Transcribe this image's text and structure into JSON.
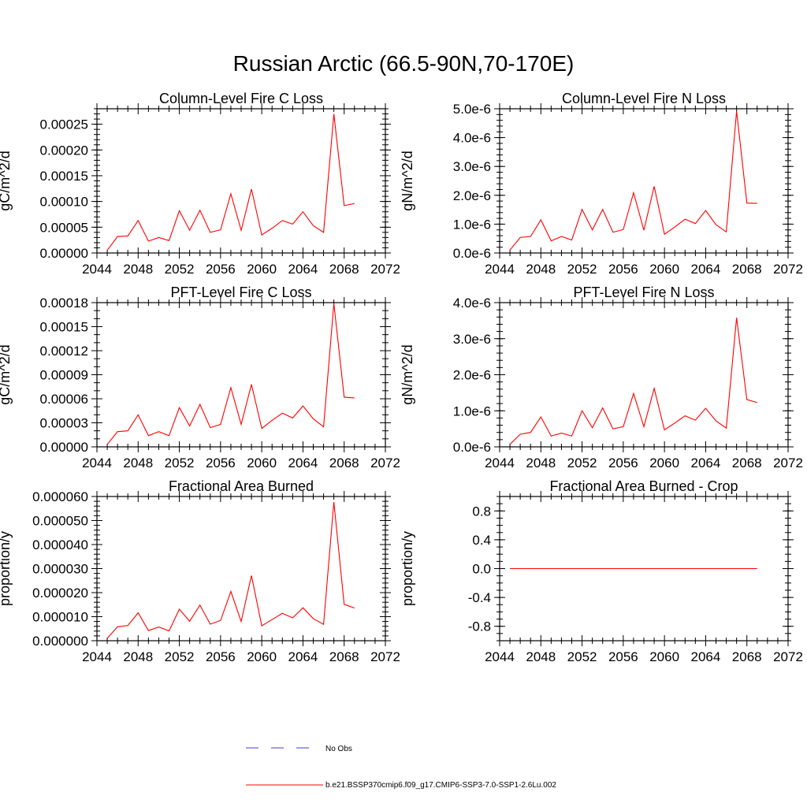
{
  "page": {
    "title": "Russian Arctic (66.5-90N,70-170E)"
  },
  "chart_data": [
    {
      "type": "line",
      "title": "Column-Level Fire C Loss",
      "ylabel": "gC/m^2/d",
      "xlim": [
        2044,
        2072
      ],
      "ylim": [
        0,
        0.00028
      ],
      "xticks": [
        "2044",
        "2048",
        "2052",
        "2056",
        "2060",
        "2064",
        "2068",
        "2072"
      ],
      "yticks": [
        {
          "v": 0.0,
          "label": "0.00000"
        },
        {
          "v": 5e-05,
          "label": "0.00005"
        },
        {
          "v": 0.0001,
          "label": "0.00010"
        },
        {
          "v": 0.00015,
          "label": "0.00015"
        },
        {
          "v": 0.0002,
          "label": "0.00020"
        },
        {
          "v": 0.00025,
          "label": "0.00025"
        }
      ],
      "ymin_minor": 1e-05,
      "x": [
        2045,
        2046,
        2047,
        2048,
        2049,
        2050,
        2051,
        2052,
        2053,
        2054,
        2055,
        2056,
        2057,
        2058,
        2059,
        2060,
        2061,
        2062,
        2063,
        2064,
        2065,
        2066,
        2067,
        2068,
        2069
      ],
      "values": [
        5e-06,
        3.2e-05,
        3.3e-05,
        6.3e-05,
        2.3e-05,
        3e-05,
        2.4e-05,
        8.2e-05,
        4.4e-05,
        8.3e-05,
        4e-05,
        4.5e-05,
        0.000115,
        4.4e-05,
        0.000124,
        3.5e-05,
        4.8e-05,
        6.3e-05,
        5.6e-05,
        8e-05,
        5.3e-05,
        4e-05,
        0.00027,
        9.2e-05,
        9.6e-05
      ],
      "color": "#ff0000"
    },
    {
      "type": "line",
      "title": "Column-Level Fire N Loss",
      "ylabel": "gN/m^2/d",
      "xlim": [
        2044,
        2072
      ],
      "ylim": [
        0,
        5e-06
      ],
      "xticks": [
        "2044",
        "2048",
        "2052",
        "2056",
        "2060",
        "2064",
        "2068",
        "2072"
      ],
      "yticks": [
        {
          "v": 0.0,
          "label": "0.0e-6"
        },
        {
          "v": 1e-06,
          "label": "1.0e-6"
        },
        {
          "v": 2e-06,
          "label": "2.0e-6"
        },
        {
          "v": 3e-06,
          "label": "3.0e-6"
        },
        {
          "v": 4e-06,
          "label": "4.0e-6"
        },
        {
          "v": 5e-06,
          "label": "5.0e-6"
        }
      ],
      "ymin_minor": 2e-07,
      "x": [
        2045,
        2046,
        2047,
        2048,
        2049,
        2050,
        2051,
        2052,
        2053,
        2054,
        2055,
        2056,
        2057,
        2058,
        2059,
        2060,
        2061,
        2062,
        2063,
        2064,
        2065,
        2066,
        2067,
        2068,
        2069
      ],
      "values": [
        1e-07,
        5.4e-07,
        5.7e-07,
        1.15e-06,
        4.2e-07,
        5.7e-07,
        4.5e-07,
        1.51e-06,
        8e-07,
        1.51e-06,
        7.2e-07,
        8.1e-07,
        2.09e-06,
        7.9e-07,
        2.31e-06,
        6.5e-07,
        9e-07,
        1.17e-06,
        1.02e-06,
        1.47e-06,
        9.8e-07,
        7.3e-07,
        4.92e-06,
        1.73e-06,
        1.72e-06
      ],
      "color": "#ff0000"
    },
    {
      "type": "line",
      "title": "PFT-Level Fire C Loss",
      "ylabel": "gC/m^2/d",
      "xlim": [
        2044,
        2072
      ],
      "ylim": [
        0,
        0.00018
      ],
      "xticks": [
        "2044",
        "2048",
        "2052",
        "2056",
        "2060",
        "2064",
        "2068",
        "2072"
      ],
      "yticks": [
        {
          "v": 0.0,
          "label": "0.00000"
        },
        {
          "v": 3e-05,
          "label": "0.00003"
        },
        {
          "v": 6e-05,
          "label": "0.00006"
        },
        {
          "v": 9e-05,
          "label": "0.00009"
        },
        {
          "v": 0.00012,
          "label": "0.00012"
        },
        {
          "v": 0.00015,
          "label": "0.00015"
        },
        {
          "v": 0.00018,
          "label": "0.00018"
        }
      ],
      "ymin_minor": 1e-05,
      "x": [
        2045,
        2046,
        2047,
        2048,
        2049,
        2050,
        2051,
        2052,
        2053,
        2054,
        2055,
        2056,
        2057,
        2058,
        2059,
        2060,
        2061,
        2062,
        2063,
        2064,
        2065,
        2066,
        2067,
        2068,
        2069
      ],
      "values": [
        3e-06,
        1.9e-05,
        2e-05,
        4e-05,
        1.4e-05,
        1.9e-05,
        1.4e-05,
        4.9e-05,
        2.6e-05,
        5.3e-05,
        2.4e-05,
        2.8e-05,
        7.4e-05,
        2.8e-05,
        7.8e-05,
        2.3e-05,
        3.3e-05,
        4.2e-05,
        3.6e-05,
        5.1e-05,
        3.5e-05,
        2.5e-05,
        0.000179,
        6.2e-05,
        6.1e-05
      ],
      "color": "#ff0000"
    },
    {
      "type": "line",
      "title": "PFT-Level Fire N Loss",
      "ylabel": "gN/m^2/d",
      "xlim": [
        2044,
        2072
      ],
      "ylim": [
        0,
        4e-06
      ],
      "xticks": [
        "2044",
        "2048",
        "2052",
        "2056",
        "2060",
        "2064",
        "2068",
        "2072"
      ],
      "yticks": [
        {
          "v": 0.0,
          "label": "0.0e-6"
        },
        {
          "v": 1e-06,
          "label": "1.0e-6"
        },
        {
          "v": 2e-06,
          "label": "2.0e-6"
        },
        {
          "v": 3e-06,
          "label": "3.0e-6"
        },
        {
          "v": 4e-06,
          "label": "4.0e-6"
        }
      ],
      "ymin_minor": 2e-07,
      "x": [
        2045,
        2046,
        2047,
        2048,
        2049,
        2050,
        2051,
        2052,
        2053,
        2054,
        2055,
        2056,
        2057,
        2058,
        2059,
        2060,
        2061,
        2062,
        2063,
        2064,
        2065,
        2066,
        2067,
        2068,
        2069
      ],
      "values": [
        7e-08,
        3.5e-07,
        4e-07,
        8.3e-07,
        3e-07,
        3.8e-07,
        3e-07,
        1e-06,
        5.3e-07,
        1.08e-06,
        5e-07,
        5.6e-07,
        1.48e-06,
        5.6e-07,
        1.62e-06,
        4.7e-07,
        6.6e-07,
        8.6e-07,
        7.4e-07,
        1.07e-06,
        7.2e-07,
        5.2e-07,
        3.58e-06,
        1.31e-06,
        1.23e-06
      ],
      "color": "#ff0000"
    },
    {
      "type": "line",
      "title": "Fractional Area Burned",
      "ylabel": "proportion/y",
      "xlim": [
        2044,
        2072
      ],
      "ylim": [
        0,
        6e-05
      ],
      "xticks": [
        "2044",
        "2048",
        "2052",
        "2056",
        "2060",
        "2064",
        "2068",
        "2072"
      ],
      "yticks": [
        {
          "v": 0.0,
          "label": "0.000000"
        },
        {
          "v": 1e-05,
          "label": "0.000010"
        },
        {
          "v": 2e-05,
          "label": "0.000020"
        },
        {
          "v": 3e-05,
          "label": "0.000030"
        },
        {
          "v": 4e-05,
          "label": "0.000040"
        },
        {
          "v": 5e-05,
          "label": "0.000050"
        },
        {
          "v": 6e-05,
          "label": "0.000060"
        }
      ],
      "ymin_minor": 2e-06,
      "x": [
        2045,
        2046,
        2047,
        2048,
        2049,
        2050,
        2051,
        2052,
        2053,
        2054,
        2055,
        2056,
        2057,
        2058,
        2059,
        2060,
        2061,
        2062,
        2063,
        2064,
        2065,
        2066,
        2067,
        2068,
        2069
      ],
      "values": [
        1e-06,
        5.8e-06,
        6.3e-06,
        1.16e-05,
        4.2e-06,
        5.7e-06,
        4.1e-06,
        1.31e-05,
        8.1e-06,
        1.48e-05,
        6.9e-06,
        8.4e-06,
        2.05e-05,
        8e-06,
        2.71e-05,
        6.2e-06,
        8.8e-06,
        1.14e-05,
        9.5e-06,
        1.37e-05,
        9.2e-06,
        6.8e-06,
        5.77e-05,
        1.51e-05,
        1.36e-05
      ],
      "color": "#ff0000"
    },
    {
      "type": "line",
      "title": "Fractional Area Burned - Crop",
      "ylabel": "proportion/y",
      "xlim": [
        2044,
        2072
      ],
      "ylim": [
        -1.0,
        1.0
      ],
      "xticks": [
        "2044",
        "2048",
        "2052",
        "2056",
        "2060",
        "2064",
        "2068",
        "2072"
      ],
      "yticks": [
        {
          "v": -0.8,
          "label": "-0.8"
        },
        {
          "v": -0.4,
          "label": "-0.4"
        },
        {
          "v": 0.0,
          "label": "0.0"
        },
        {
          "v": 0.4,
          "label": "0.4"
        },
        {
          "v": 0.8,
          "label": "0.8"
        }
      ],
      "ymin_minor": 0.1,
      "x": [
        2045,
        2046,
        2047,
        2048,
        2049,
        2050,
        2051,
        2052,
        2053,
        2054,
        2055,
        2056,
        2057,
        2058,
        2059,
        2060,
        2061,
        2062,
        2063,
        2064,
        2065,
        2066,
        2067,
        2068,
        2069
      ],
      "values": [
        0,
        0,
        0,
        0,
        0,
        0,
        0,
        0,
        0,
        0,
        0,
        0,
        0,
        0,
        0,
        0,
        0,
        0,
        0,
        0,
        0,
        0,
        0,
        0,
        0
      ],
      "color": "#ff0000"
    }
  ],
  "legend": {
    "placement": "bottom-center",
    "items": [
      {
        "name": "No Obs",
        "color": "#3f3fbf",
        "dash": "dashed"
      },
      {
        "name": "b.e21.BSSP370cmip6.f09_g17.CMIP6-SSP3-7.0-SSP1-2.6Lu.002",
        "color": "#ff0000",
        "dash": "solid"
      }
    ]
  }
}
